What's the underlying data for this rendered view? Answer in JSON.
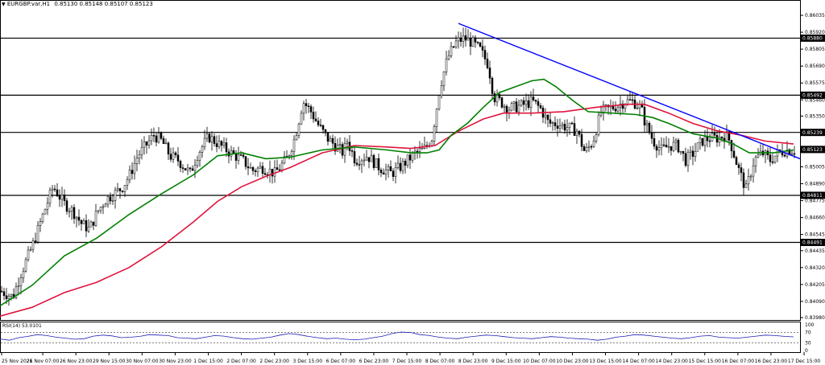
{
  "header": {
    "symbol_timeframe": "EURGBP.var,H1",
    "ohlc": "0.85130 0.85148 0.85107 0.85123"
  },
  "rsi_label": "RSI(14) 53.0101",
  "colors": {
    "candle": "#000000",
    "ma_fast": "#008000",
    "ma_slow": "#e0143c",
    "trendline": "#0000ff",
    "rsi": "#1e1eb4",
    "price_tag": "#000000",
    "price_tag_text": "#ffffff"
  },
  "chart_data": {
    "type": "candlestick",
    "y_ticks": [
      "0.86035",
      "0.85920",
      "0.85805",
      "0.85690",
      "0.85575",
      "0.85460",
      "0.85350",
      "0.85005",
      "0.84890",
      "0.84775",
      "0.84660",
      "0.84545",
      "0.84435",
      "0.84320",
      "0.84205",
      "0.84090",
      "0.83980"
    ],
    "ylim": [
      0.8398,
      0.8609
    ],
    "x_labels": [
      "25 Nov 2021",
      "26 Nov 07:00",
      "26 Nov 23:00",
      "29 Nov 15:00",
      "30 Nov 07:00",
      "30 Nov 23:00",
      "1 Dec 15:00",
      "2 Dec 07:00",
      "2 Dec 23:00",
      "3 Dec 15:00",
      "6 Dec 07:00",
      "6 Dec 23:00",
      "7 Dec 15:00",
      "8 Dec 07:00",
      "8 Dec 23:00",
      "9 Dec 15:00",
      "10 Dec 07:00",
      "10 Dec 23:00",
      "13 Dec 15:00",
      "14 Dec 07:00",
      "14 Dec 23:00",
      "15 Dec 15:00",
      "16 Dec 07:00",
      "16 Dec 23:00",
      "17 Dec 15:00"
    ],
    "horizontal_levels": [
      {
        "value": 0.8588,
        "label": "0.85880"
      },
      {
        "value": 0.85492,
        "label": "0.85492"
      },
      {
        "value": 0.85239,
        "label": "0.85239"
      },
      {
        "value": 0.84811,
        "label": "0.84811"
      },
      {
        "value": 0.84491,
        "label": "0.84491"
      }
    ],
    "current_price": {
      "value": 0.85123,
      "label": "0.85123"
    },
    "trendline": {
      "from": {
        "x": "8 Dec 07:00",
        "y": 0.8598
      },
      "to": {
        "x": "17 Dec 15:00",
        "y": 0.8506
      }
    },
    "close_path": [
      [
        0,
        0.8416
      ],
      [
        15,
        0.8412
      ],
      [
        25,
        0.8428
      ],
      [
        40,
        0.8448
      ],
      [
        55,
        0.8472
      ],
      [
        65,
        0.8487
      ],
      [
        78,
        0.8476
      ],
      [
        90,
        0.847
      ],
      [
        100,
        0.8462
      ],
      [
        110,
        0.8458
      ],
      [
        120,
        0.847
      ],
      [
        130,
        0.8478
      ],
      [
        140,
        0.8482
      ],
      [
        150,
        0.8486
      ],
      [
        160,
        0.8495
      ],
      [
        170,
        0.8508
      ],
      [
        180,
        0.8515
      ],
      [
        190,
        0.8522
      ],
      [
        200,
        0.8518
      ],
      [
        210,
        0.8508
      ],
      [
        220,
        0.8505
      ],
      [
        235,
        0.8496
      ],
      [
        245,
        0.851
      ],
      [
        258,
        0.8521
      ],
      [
        270,
        0.8516
      ],
      [
        285,
        0.851
      ],
      [
        300,
        0.8505
      ],
      [
        312,
        0.8498
      ],
      [
        325,
        0.85
      ],
      [
        340,
        0.8496
      ],
      [
        355,
        0.8506
      ],
      [
        365,
        0.852
      ],
      [
        375,
        0.8545
      ],
      [
        385,
        0.8538
      ],
      [
        395,
        0.8528
      ],
      [
        405,
        0.852
      ],
      [
        415,
        0.8515
      ],
      [
        425,
        0.851
      ],
      [
        430,
        0.8518
      ],
      [
        440,
        0.8505
      ],
      [
        455,
        0.8508
      ],
      [
        470,
        0.85
      ],
      [
        485,
        0.8496
      ],
      [
        495,
        0.85
      ],
      [
        505,
        0.8505
      ],
      [
        515,
        0.851
      ],
      [
        525,
        0.8512
      ],
      [
        535,
        0.852
      ],
      [
        545,
        0.8555
      ],
      [
        555,
        0.8575
      ],
      [
        565,
        0.8585
      ],
      [
        575,
        0.8588
      ],
      [
        585,
        0.8585
      ],
      [
        595,
        0.858
      ],
      [
        605,
        0.857
      ],
      [
        612,
        0.8548
      ],
      [
        620,
        0.8545
      ],
      [
        630,
        0.854
      ],
      [
        645,
        0.8542
      ],
      [
        660,
        0.8545
      ],
      [
        670,
        0.854
      ],
      [
        680,
        0.853
      ],
      [
        690,
        0.853
      ],
      [
        700,
        0.8528
      ],
      [
        715,
        0.8525
      ],
      [
        725,
        0.851
      ],
      [
        735,
        0.8518
      ],
      [
        745,
        0.8538
      ],
      [
        755,
        0.854
      ],
      [
        765,
        0.8542
      ],
      [
        775,
        0.8545
      ],
      [
        785,
        0.8545
      ],
      [
        795,
        0.854
      ],
      [
        800,
        0.853
      ],
      [
        810,
        0.8518
      ],
      [
        820,
        0.8512
      ],
      [
        830,
        0.8515
      ],
      [
        840,
        0.8515
      ],
      [
        850,
        0.8505
      ],
      [
        860,
        0.851
      ],
      [
        870,
        0.8518
      ],
      [
        880,
        0.852
      ],
      [
        890,
        0.852
      ],
      [
        900,
        0.8522
      ],
      [
        905,
        0.8518
      ],
      [
        915,
        0.85
      ],
      [
        925,
        0.8485
      ],
      [
        935,
        0.8505
      ],
      [
        945,
        0.851
      ],
      [
        955,
        0.8505
      ],
      [
        965,
        0.851
      ],
      [
        975,
        0.8512
      ],
      [
        985,
        0.8512
      ]
    ],
    "ma_fast_path": [
      [
        0,
        0.8406
      ],
      [
        40,
        0.842
      ],
      [
        80,
        0.844
      ],
      [
        120,
        0.8452
      ],
      [
        160,
        0.8468
      ],
      [
        200,
        0.8482
      ],
      [
        240,
        0.8495
      ],
      [
        270,
        0.8508
      ],
      [
        300,
        0.851
      ],
      [
        330,
        0.8506
      ],
      [
        360,
        0.8507
      ],
      [
        400,
        0.8512
      ],
      [
        440,
        0.8514
      ],
      [
        480,
        0.8512
      ],
      [
        510,
        0.851
      ],
      [
        530,
        0.851
      ],
      [
        545,
        0.8512
      ],
      [
        560,
        0.8522
      ],
      [
        580,
        0.853
      ],
      [
        600,
        0.8541
      ],
      [
        620,
        0.8551
      ],
      [
        640,
        0.8555
      ],
      [
        660,
        0.8559
      ],
      [
        675,
        0.856
      ],
      [
        690,
        0.8555
      ],
      [
        710,
        0.8546
      ],
      [
        730,
        0.8538
      ],
      [
        760,
        0.8537
      ],
      [
        790,
        0.8536
      ],
      [
        810,
        0.8534
      ],
      [
        830,
        0.853
      ],
      [
        860,
        0.8523
      ],
      [
        890,
        0.852
      ],
      [
        910,
        0.8516
      ],
      [
        930,
        0.851
      ],
      [
        960,
        0.851
      ],
      [
        985,
        0.8512
      ]
    ],
    "ma_slow_path": [
      [
        0,
        0.8399
      ],
      [
        40,
        0.8405
      ],
      [
        80,
        0.8415
      ],
      [
        120,
        0.8422
      ],
      [
        160,
        0.8432
      ],
      [
        200,
        0.8446
      ],
      [
        240,
        0.8463
      ],
      [
        270,
        0.8477
      ],
      [
        300,
        0.8487
      ],
      [
        330,
        0.8494
      ],
      [
        360,
        0.85
      ],
      [
        400,
        0.851
      ],
      [
        440,
        0.8515
      ],
      [
        480,
        0.8514
      ],
      [
        510,
        0.8513
      ],
      [
        540,
        0.8515
      ],
      [
        570,
        0.8525
      ],
      [
        600,
        0.8533
      ],
      [
        625,
        0.8537
      ],
      [
        660,
        0.8537
      ],
      [
        700,
        0.8538
      ],
      [
        740,
        0.8541
      ],
      [
        780,
        0.8543
      ],
      [
        800,
        0.8543
      ],
      [
        830,
        0.8537
      ],
      [
        860,
        0.853
      ],
      [
        890,
        0.8525
      ],
      [
        920,
        0.8522
      ],
      [
        950,
        0.8518
      ],
      [
        985,
        0.8516
      ]
    ],
    "rsi": {
      "name": "RSI(14)",
      "levels": [
        30,
        70
      ],
      "scale_labels": [
        "100",
        "70",
        "30",
        "0"
      ],
      "values": [
        45,
        40,
        50,
        55,
        62,
        58,
        52,
        48,
        44,
        46,
        56,
        60,
        57,
        50,
        52,
        55,
        62,
        60,
        58,
        50,
        48,
        46,
        52,
        58,
        56,
        50,
        46,
        44,
        48,
        52,
        60,
        66,
        62,
        55,
        50,
        46,
        48,
        44,
        42,
        44,
        50,
        56,
        66,
        72,
        70,
        62,
        58,
        52,
        48,
        46,
        52,
        56,
        60,
        58,
        54,
        50,
        48,
        46,
        50,
        54,
        52,
        48,
        46,
        44,
        40,
        44,
        52,
        56,
        62,
        60,
        56,
        52,
        48,
        46,
        50,
        56,
        58,
        52,
        50,
        48,
        52,
        56,
        60,
        58,
        55,
        53
      ]
    }
  }
}
